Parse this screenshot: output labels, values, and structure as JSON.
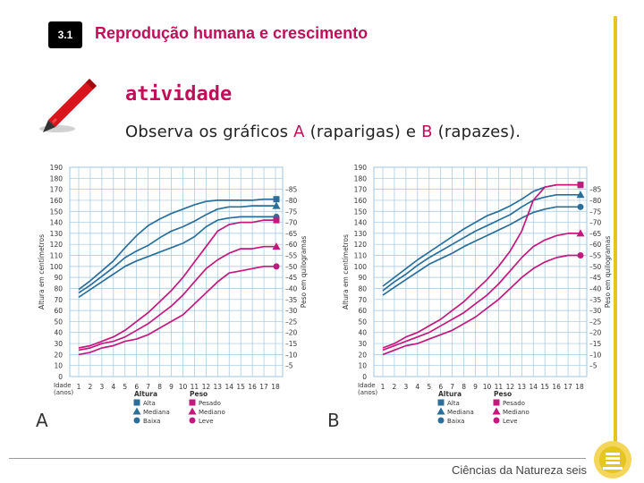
{
  "header": {
    "badge": "3.1",
    "title": "Reprodução humana e crescimento"
  },
  "activity": {
    "title": "atividade",
    "instr_pre": "Observa os gráficos ",
    "instr_a": "A",
    "instr_a_word": " (raparigas)",
    "instr_mid": " e ",
    "instr_b": "B",
    "instr_b_word": " (rapazes).",
    "instr_end": ""
  },
  "footer": {
    "text": "Ciências da Natureza seis"
  },
  "colors": {
    "accent": "#c00e58",
    "height": "#2a6f9a",
    "weight": "#c4187e",
    "grid": "#9fc6e0",
    "yellow": "#e5c61e"
  },
  "icons": {
    "pencil": "red-pencil-icon",
    "logo": "publisher-logo-icon"
  },
  "chart_data": [
    {
      "type": "line",
      "label": "A",
      "x": [
        1,
        2,
        3,
        4,
        5,
        6,
        7,
        8,
        9,
        10,
        11,
        12,
        13,
        14,
        15,
        16,
        17,
        18
      ],
      "x_ticks": [
        "1",
        "2",
        "3",
        "4",
        "5",
        "6",
        "7",
        "8",
        "9",
        "10",
        "11",
        "12",
        "13",
        "14",
        "15",
        "16",
        "17",
        "18"
      ],
      "x_title": [
        "Idade",
        "(anos)"
      ],
      "ylabel": "Altura em centímetros",
      "y2label": "Peso em quilogramas",
      "ylim": [
        0,
        190
      ],
      "y_ticks": [
        0,
        10,
        20,
        30,
        40,
        50,
        60,
        70,
        80,
        90,
        100,
        110,
        120,
        130,
        140,
        150,
        160,
        170,
        180,
        190
      ],
      "y2lim": [
        0,
        95
      ],
      "y2_ticks": [
        "5",
        "10",
        "15",
        "20",
        "25",
        "30",
        "35",
        "40",
        "45",
        "50",
        "55",
        "60",
        "65",
        "70",
        "75",
        "80",
        "85"
      ],
      "series": [
        {
          "name": "Altura Alta",
          "group": "height",
          "marker": "square",
          "values": [
            79,
            87,
            96,
            105,
            117,
            128,
            137,
            143,
            148,
            152,
            156,
            159,
            160,
            160,
            160,
            160,
            161,
            161
          ]
        },
        {
          "name": "Altura Mediana",
          "group": "height",
          "marker": "triangle",
          "values": [
            76,
            83,
            91,
            99,
            108,
            114,
            119,
            126,
            132,
            136,
            141,
            147,
            152,
            154,
            154,
            155,
            155,
            155
          ]
        },
        {
          "name": "Altura Baixa",
          "group": "height",
          "marker": "circle",
          "values": [
            72,
            79,
            86,
            93,
            100,
            105,
            109,
            113,
            117,
            121,
            127,
            136,
            142,
            144,
            145,
            145,
            145,
            145
          ]
        },
        {
          "name": "Peso Pesado",
          "group": "weight",
          "marker": "square",
          "values": [
            13,
            14,
            16,
            18,
            21,
            25,
            29,
            34,
            39,
            45,
            52,
            59,
            66,
            69,
            70,
            70,
            71,
            71
          ]
        },
        {
          "name": "Peso Mediano",
          "group": "weight",
          "marker": "triangle",
          "values": [
            12,
            13,
            15,
            16,
            18,
            21,
            24,
            28,
            32,
            37,
            43,
            49,
            53,
            56,
            58,
            58,
            59,
            59
          ]
        },
        {
          "name": "Peso Leve",
          "group": "weight",
          "marker": "circle",
          "values": [
            10,
            11,
            13,
            14,
            16,
            17,
            19,
            22,
            25,
            28,
            33,
            38,
            43,
            47,
            48,
            49,
            50,
            50
          ]
        }
      ],
      "legend": {
        "height_title": "Altura",
        "weight_title": "Peso",
        "height_items": [
          "Alta",
          "Mediana",
          "Baixa"
        ],
        "weight_items": [
          "Pesado",
          "Mediano",
          "Leve"
        ]
      }
    },
    {
      "type": "line",
      "label": "B",
      "x": [
        1,
        2,
        3,
        4,
        5,
        6,
        7,
        8,
        9,
        10,
        11,
        12,
        13,
        14,
        15,
        16,
        17,
        18
      ],
      "x_ticks": [
        "1",
        "2",
        "3",
        "4",
        "5",
        "6",
        "7",
        "8",
        "9",
        "10",
        "11",
        "12",
        "13",
        "14",
        "15",
        "16",
        "17",
        "18"
      ],
      "x_title": [
        "Idade",
        "(anos)"
      ],
      "ylabel": "Altura em centímetros",
      "y2label": "Peso em quilogramas",
      "ylim": [
        0,
        190
      ],
      "y_ticks": [
        0,
        10,
        20,
        30,
        40,
        50,
        60,
        70,
        80,
        90,
        100,
        110,
        120,
        130,
        140,
        150,
        160,
        170,
        180,
        190
      ],
      "y2lim": [
        0,
        95
      ],
      "y2_ticks": [
        "5",
        "10",
        "15",
        "20",
        "25",
        "30",
        "35",
        "40",
        "45",
        "50",
        "55",
        "60",
        "65",
        "70",
        "75",
        "80",
        "85"
      ],
      "series": [
        {
          "name": "Altura Alta",
          "group": "height",
          "marker": "square",
          "values": [
            82,
            90,
            98,
            106,
            113,
            120,
            127,
            134,
            140,
            146,
            150,
            155,
            161,
            168,
            172,
            174,
            174,
            174
          ]
        },
        {
          "name": "Altura Mediana",
          "group": "height",
          "marker": "triangle",
          "values": [
            78,
            86,
            93,
            101,
            108,
            114,
            120,
            126,
            132,
            137,
            142,
            147,
            154,
            160,
            163,
            165,
            165,
            165
          ]
        },
        {
          "name": "Altura Baixa",
          "group": "height",
          "marker": "circle",
          "values": [
            74,
            81,
            88,
            95,
            102,
            107,
            112,
            118,
            123,
            128,
            133,
            138,
            144,
            149,
            152,
            154,
            154,
            154
          ]
        },
        {
          "name": "Peso Pesado",
          "group": "weight",
          "marker": "square",
          "values": [
            13,
            15,
            18,
            20,
            23,
            26,
            30,
            34,
            39,
            44,
            50,
            57,
            66,
            80,
            86,
            87,
            87,
            87
          ]
        },
        {
          "name": "Peso Mediano",
          "group": "weight",
          "marker": "triangle",
          "values": [
            12,
            14,
            16,
            18,
            20,
            23,
            26,
            29,
            33,
            37,
            42,
            48,
            54,
            59,
            62,
            64,
            65,
            65
          ]
        },
        {
          "name": "Peso Leve",
          "group": "weight",
          "marker": "circle",
          "values": [
            10,
            12,
            14,
            15,
            17,
            19,
            21,
            24,
            27,
            31,
            35,
            40,
            45,
            49,
            52,
            54,
            55,
            55
          ]
        }
      ],
      "legend": {
        "height_title": "Altura",
        "weight_title": "Peso",
        "height_items": [
          "Alta",
          "Mediana",
          "Baixa"
        ],
        "weight_items": [
          "Pesado",
          "Mediano",
          "Leve"
        ]
      }
    }
  ]
}
